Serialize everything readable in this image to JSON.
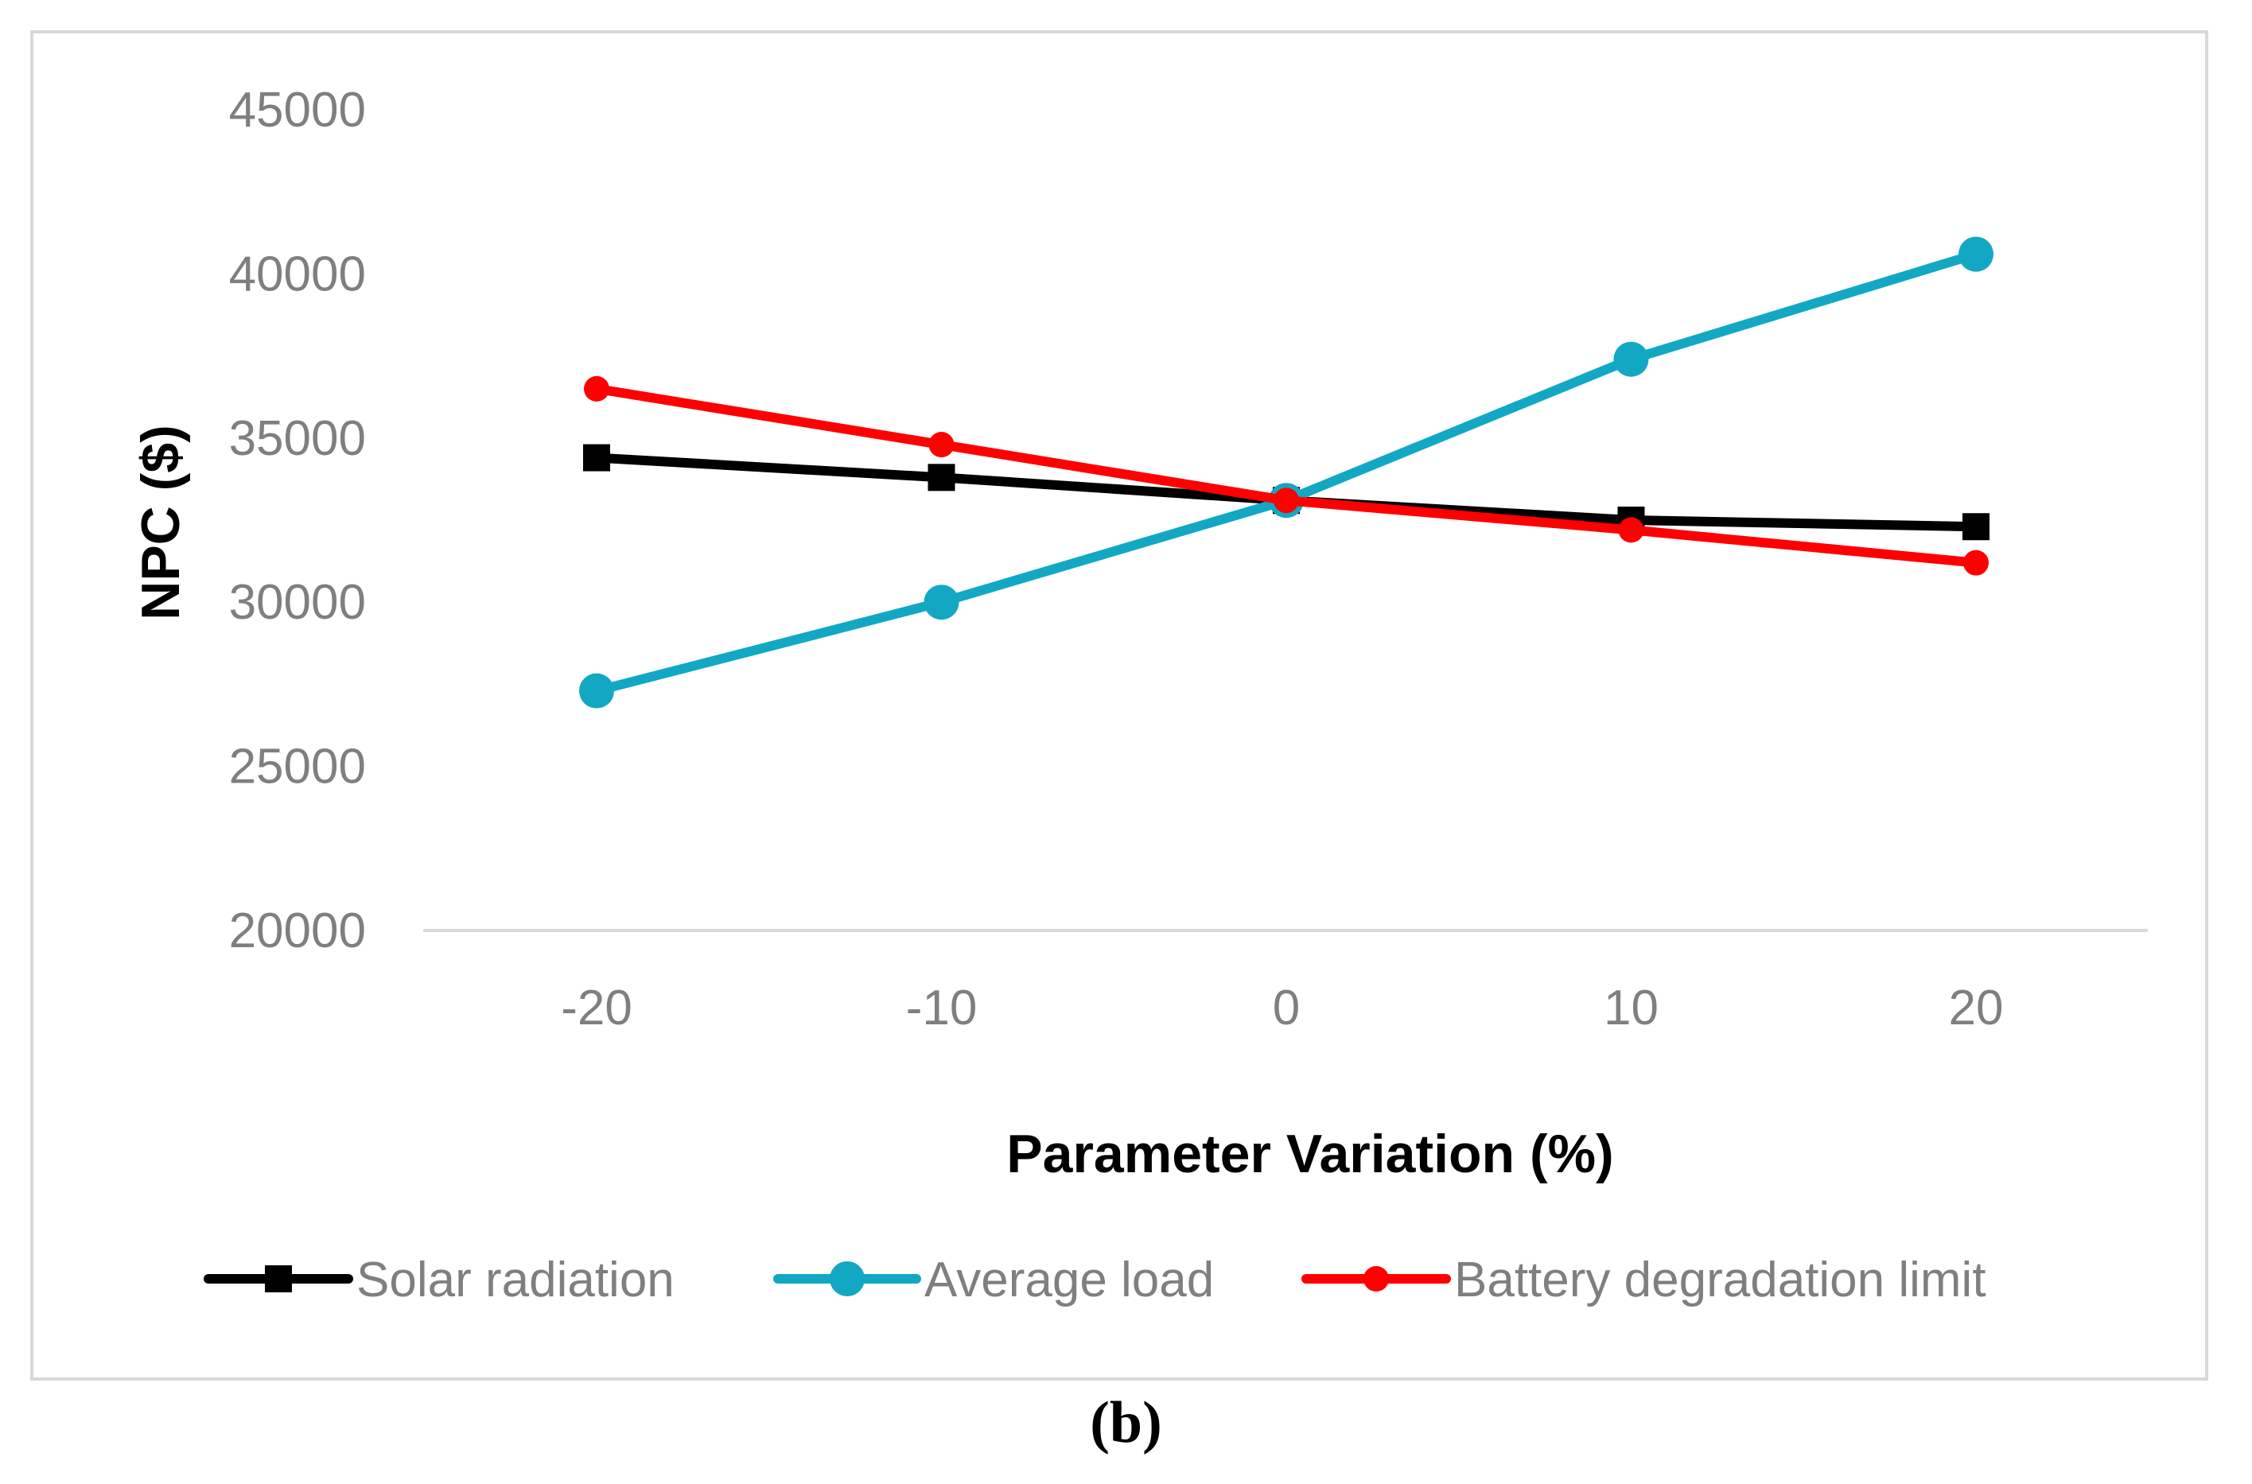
{
  "chart_data": {
    "type": "line",
    "title": "",
    "xlabel": "Parameter Variation (%)",
    "ylabel": "NPC ($)",
    "x": [
      -20,
      -10,
      0,
      10,
      20
    ],
    "x_tick_labels": [
      "-20",
      "-10",
      "0",
      "10",
      "20"
    ],
    "ylim": [
      20000,
      45000
    ],
    "y_ticks": [
      20000,
      25000,
      30000,
      35000,
      40000,
      45000
    ],
    "y_tick_labels": [
      "20000",
      "25000",
      "30000",
      "35000",
      "40000",
      "45000"
    ],
    "grid": false,
    "legend_position": "bottom",
    "series": [
      {
        "name": "Solar radiation",
        "color": "#000000",
        "marker": "square",
        "values": [
          34400,
          33800,
          33100,
          32500,
          32300
        ]
      },
      {
        "name": "Average load",
        "color": "#12a8c4",
        "marker": "circle",
        "values": [
          27300,
          30000,
          33100,
          37400,
          40600
        ]
      },
      {
        "name": "Battery degradation limit",
        "color": "#ff0000",
        "marker": "circle",
        "values": [
          36500,
          34800,
          33100,
          32200,
          31200
        ]
      }
    ]
  },
  "caption": "(b)"
}
